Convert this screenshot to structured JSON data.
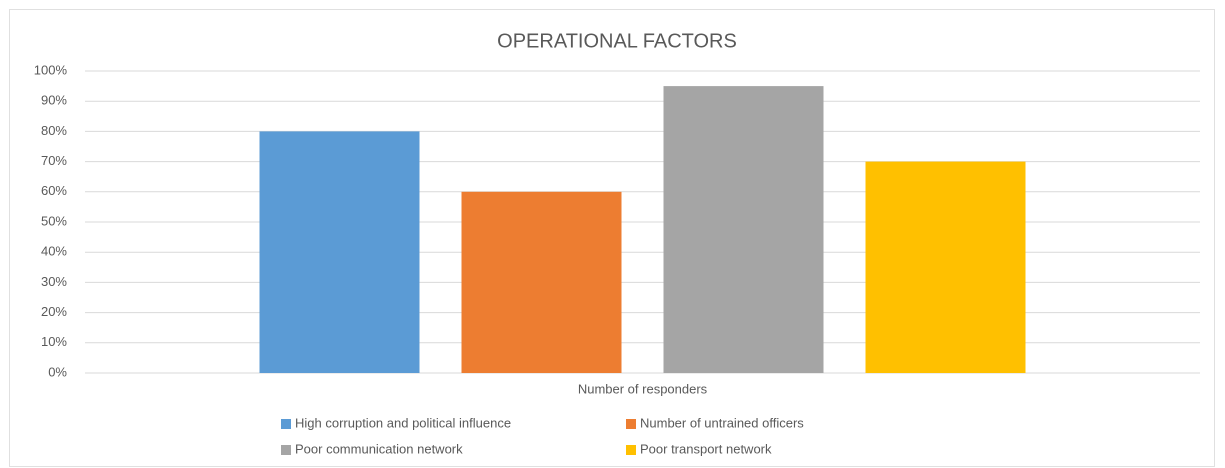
{
  "chart_data": {
    "type": "bar",
    "title": "OPERATIONAL FACTORS",
    "categories": [
      "Number of responders"
    ],
    "series": [
      {
        "name": "High corruption and political influence",
        "color": "#5b9bd5",
        "values": [
          80
        ]
      },
      {
        "name": "Number of untrained officers",
        "color": "#ed7d31",
        "values": [
          60
        ]
      },
      {
        "name": "Poor communication network",
        "color": "#a5a5a5",
        "values": [
          95
        ]
      },
      {
        "name": "Poor transport network",
        "color": "#ffc000",
        "values": [
          70
        ]
      }
    ],
    "ylim": [
      0,
      100
    ],
    "yticks": [
      {
        "value": 0,
        "label": "0%"
      },
      {
        "value": 10,
        "label": "10%"
      },
      {
        "value": 20,
        "label": "20%"
      },
      {
        "value": 30,
        "label": "30%"
      },
      {
        "value": 40,
        "label": "40%"
      },
      {
        "value": 50,
        "label": "50%"
      },
      {
        "value": 60,
        "label": "60%"
      },
      {
        "value": 70,
        "label": "70%"
      },
      {
        "value": 80,
        "label": "80%"
      },
      {
        "value": 90,
        "label": "90%"
      },
      {
        "value": 100,
        "label": "100%"
      }
    ],
    "grid": true,
    "legend": "bottom"
  }
}
